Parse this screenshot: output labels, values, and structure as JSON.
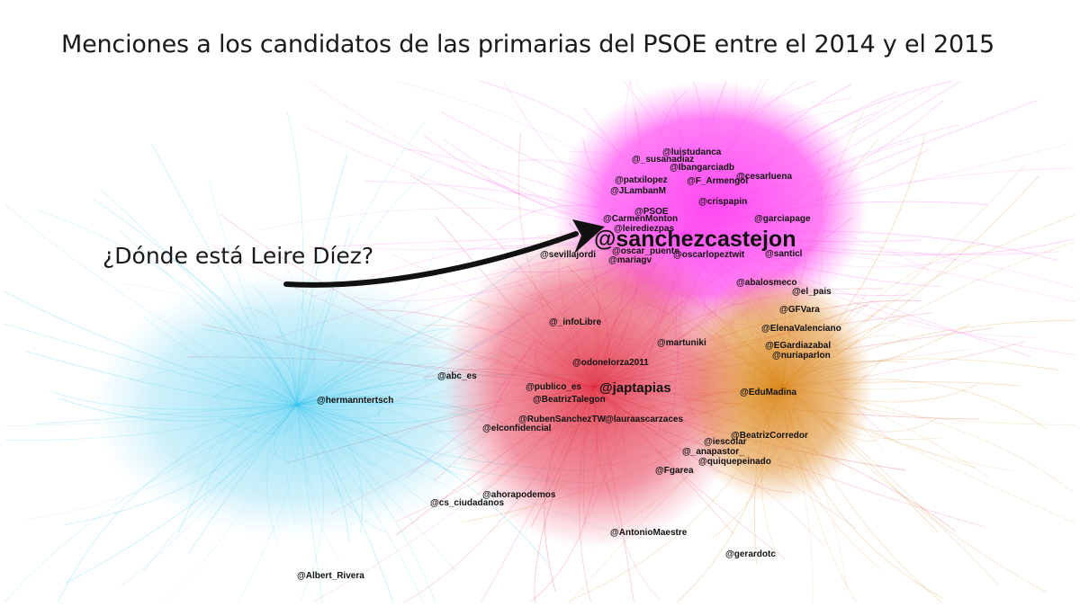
{
  "title": "Menciones a los candidatos de las primarias del PSOE entre el 2014 y el 2015",
  "annotation": "¿Dónde está Leire Díez?",
  "colors": {
    "background": "#ffffff",
    "magenta_cluster": "#ff3df0",
    "red_cluster": "#e0283a",
    "orange_cluster": "#d9820f",
    "blue_cluster": "#2cc2ee",
    "arrow": "#111111"
  },
  "nodes": [
    {
      "id": "luistudanca",
      "label": "@luistudanca",
      "cluster": "magenta"
    },
    {
      "id": "susanadiaz",
      "label": "@_susanadiaz",
      "cluster": "magenta"
    },
    {
      "id": "ibangarciadb",
      "label": "@Ibangarciadb",
      "cluster": "magenta"
    },
    {
      "id": "cesarluena",
      "label": "@cesarluena",
      "cluster": "magenta"
    },
    {
      "id": "patxilopez",
      "label": "@patxilopez",
      "cluster": "magenta"
    },
    {
      "id": "farmengol",
      "label": "@F_Armengol",
      "cluster": "magenta"
    },
    {
      "id": "jlambanm",
      "label": "@JLambanM",
      "cluster": "magenta"
    },
    {
      "id": "crispapin",
      "label": "@crispapin",
      "cluster": "magenta"
    },
    {
      "id": "psoe",
      "label": "@PSOE",
      "cluster": "magenta"
    },
    {
      "id": "carmenmonton",
      "label": "@CarmenMonton",
      "cluster": "magenta"
    },
    {
      "id": "garciapage",
      "label": "@garciapage",
      "cluster": "magenta"
    },
    {
      "id": "leiredizpas",
      "label": "@leirediezpas",
      "cluster": "magenta"
    },
    {
      "id": "sanchezcastejon",
      "label": "@sanchezcastejon",
      "cluster": "magenta"
    },
    {
      "id": "sevillajordi",
      "label": "@sevillajordi",
      "cluster": "magenta"
    },
    {
      "id": "oscarpuente",
      "label": "@oscar_puente_",
      "cluster": "magenta"
    },
    {
      "id": "oscarlopeztwit",
      "label": "@oscarlopeztwit",
      "cluster": "magenta"
    },
    {
      "id": "santicl",
      "label": "@santicl",
      "cluster": "magenta"
    },
    {
      "id": "mariagv",
      "label": "@mariagv",
      "cluster": "magenta"
    },
    {
      "id": "abalosmeco",
      "label": "@abalosmeco",
      "cluster": "magenta"
    },
    {
      "id": "elpais",
      "label": "@el_pais",
      "cluster": "magenta"
    },
    {
      "id": "gfvara",
      "label": "@GFVara",
      "cluster": "orange"
    },
    {
      "id": "infolibre",
      "label": "@_infoLibre",
      "cluster": "red"
    },
    {
      "id": "elenavalenciano",
      "label": "@ElenaValenciano",
      "cluster": "orange"
    },
    {
      "id": "martuniki",
      "label": "@martuniki",
      "cluster": "red"
    },
    {
      "id": "egardiazabal",
      "label": "@EGardiazabal",
      "cluster": "orange"
    },
    {
      "id": "nuriaparlon",
      "label": "@nuriaparlon",
      "cluster": "orange"
    },
    {
      "id": "odonelorza",
      "label": "@odonelorza2011",
      "cluster": "red"
    },
    {
      "id": "abces",
      "label": "@abc_es",
      "cluster": "blue"
    },
    {
      "id": "publicoes",
      "label": "@publico_es",
      "cluster": "red"
    },
    {
      "id": "japtapias",
      "label": "@japtapias",
      "cluster": "red"
    },
    {
      "id": "edumadina",
      "label": "@EduMadina",
      "cluster": "orange"
    },
    {
      "id": "hermanntertsch",
      "label": "@hermanntertsch",
      "cluster": "blue"
    },
    {
      "id": "beatriztalegon",
      "label": "@BeatrizTalegon",
      "cluster": "red"
    },
    {
      "id": "rubensanchez",
      "label": "@RubenSanchezTW",
      "cluster": "red"
    },
    {
      "id": "lauraescarzaces",
      "label": "@lauraascarzaces",
      "cluster": "red"
    },
    {
      "id": "elconfidencial",
      "label": "@elconfidencial",
      "cluster": "red"
    },
    {
      "id": "beatrizcorredor",
      "label": "@BeatrizCorredor",
      "cluster": "orange"
    },
    {
      "id": "iescolar",
      "label": "@iescolar",
      "cluster": "orange"
    },
    {
      "id": "anapastor",
      "label": "@_anapastor_",
      "cluster": "orange"
    },
    {
      "id": "quiquepeinado",
      "label": "@quiquepeinado",
      "cluster": "orange"
    },
    {
      "id": "fgarea",
      "label": "@Fgarea",
      "cluster": "red"
    },
    {
      "id": "ahorapodemos",
      "label": "@ahorapodemos",
      "cluster": "red"
    },
    {
      "id": "csciudadanos",
      "label": "@cs_ciudadanos",
      "cluster": "blue"
    },
    {
      "id": "antoniomaestre",
      "label": "@AntonioMaestre",
      "cluster": "red"
    },
    {
      "id": "gerardotc",
      "label": "@gerardotc",
      "cluster": "orange"
    },
    {
      "id": "albertrivera",
      "label": "@Albert_Rivera",
      "cluster": "blue"
    }
  ]
}
